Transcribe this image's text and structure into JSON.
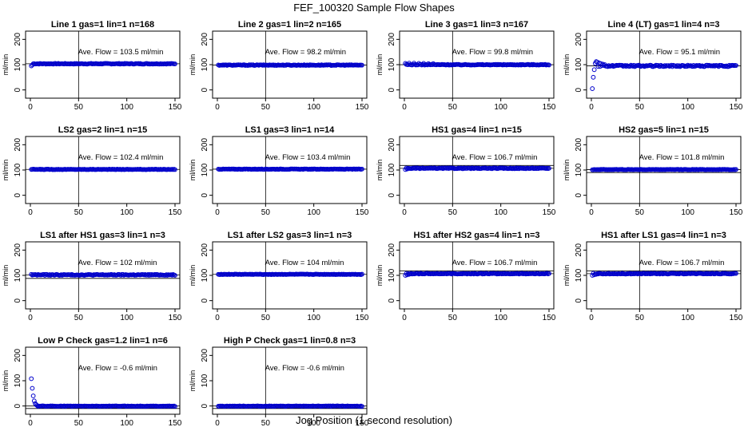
{
  "figure": {
    "title": "FEF_100320  Sample Flow Shapes",
    "xlabel": "Jog Position (1 second resolution)"
  },
  "colors": {
    "points": "#0000cc",
    "axis": "#000000"
  },
  "chart_data": [
    {
      "type": "scatter",
      "title": "Line 1 gas=1 lin=1 n=168",
      "ylabel": "ml/min",
      "annotation": "Ave. Flow =  103.5  ml/min",
      "xlim": [
        0,
        150
      ],
      "ylim": [
        -20,
        220
      ],
      "xticks": [
        0,
        50,
        100,
        150
      ],
      "yticks": [
        0,
        100,
        200
      ],
      "ref_lines_y": [
        103.5
      ],
      "ref_line_x": 50,
      "profile": {
        "base": 103.5,
        "noise": 1.5,
        "start": [
          [
            1,
            95
          ],
          [
            2,
            99
          ]
        ]
      }
    },
    {
      "type": "scatter",
      "title": "Line 2 gas=1 lin=2 n=165",
      "ylabel": "ml/min",
      "annotation": "Ave. Flow =  98.2  ml/min",
      "xlim": [
        0,
        150
      ],
      "ylim": [
        -20,
        220
      ],
      "xticks": [
        0,
        50,
        100,
        150
      ],
      "yticks": [
        0,
        100,
        200
      ],
      "ref_lines_y": [
        98.2
      ],
      "ref_line_x": 50,
      "profile": {
        "base": 98.2,
        "noise": 1.5,
        "start": []
      }
    },
    {
      "type": "scatter",
      "title": "Line 3 gas=1 lin=3 n=167",
      "ylabel": "ml/min",
      "annotation": "Ave. Flow =  99.8  ml/min",
      "xlim": [
        0,
        150
      ],
      "ylim": [
        -20,
        220
      ],
      "xticks": [
        0,
        50,
        100,
        150
      ],
      "yticks": [
        0,
        100,
        200
      ],
      "ref_lines_y": [
        99.8
      ],
      "ref_line_x": 50,
      "profile": {
        "base": 99.8,
        "noise": 1.5,
        "start": [
          [
            1,
            105
          ],
          [
            5,
            106
          ],
          [
            10,
            106
          ],
          [
            15,
            105
          ],
          [
            20,
            105
          ],
          [
            25,
            104
          ],
          [
            30,
            104
          ]
        ]
      }
    },
    {
      "type": "scatter",
      "title": "Line 4 (LT) gas=1 lin=4 n=3",
      "ylabel": "ml/min",
      "annotation": "Ave. Flow =  95.1  ml/min",
      "xlim": [
        0,
        150
      ],
      "ylim": [
        -20,
        220
      ],
      "xticks": [
        0,
        50,
        100,
        150
      ],
      "yticks": [
        0,
        100,
        200
      ],
      "ref_lines_y": [
        95.1
      ],
      "ref_line_x": 50,
      "profile": {
        "base": 95.1,
        "noise": 3,
        "start": [
          [
            1,
            5
          ],
          [
            2,
            50
          ],
          [
            3,
            80
          ],
          [
            4,
            105
          ],
          [
            5,
            112
          ],
          [
            6,
            110
          ],
          [
            8,
            107
          ],
          [
            10,
            104
          ],
          [
            12,
            102
          ],
          [
            14,
            100
          ]
        ]
      }
    },
    {
      "type": "scatter",
      "title": "LS2 gas=2 lin=1 n=15",
      "ylabel": "ml/min",
      "annotation": "Ave. Flow =  102.4  ml/min",
      "xlim": [
        0,
        150
      ],
      "ylim": [
        -20,
        220
      ],
      "xticks": [
        0,
        50,
        100,
        150
      ],
      "yticks": [
        0,
        100,
        200
      ],
      "ref_lines_y": [
        102.4
      ],
      "ref_line_x": 50,
      "profile": {
        "base": 102.4,
        "noise": 1,
        "start": []
      }
    },
    {
      "type": "scatter",
      "title": "LS1 gas=3 lin=1 n=14",
      "ylabel": "ml/min",
      "annotation": "Ave. Flow =  103.4  ml/min",
      "xlim": [
        0,
        150
      ],
      "ylim": [
        -20,
        220
      ],
      "xticks": [
        0,
        50,
        100,
        150
      ],
      "yticks": [
        0,
        100,
        200
      ],
      "ref_lines_y": [
        103.4
      ],
      "ref_line_x": 50,
      "profile": {
        "base": 103.4,
        "noise": 1,
        "start": []
      }
    },
    {
      "type": "scatter",
      "title": "HS1 gas=4 lin=1 n=15",
      "ylabel": "ml/min",
      "annotation": "Ave. Flow =  106.7  ml/min",
      "xlim": [
        0,
        150
      ],
      "ylim": [
        -20,
        220
      ],
      "xticks": [
        0,
        50,
        100,
        150
      ],
      "yticks": [
        0,
        100,
        200
      ],
      "ref_lines_y": [
        106.7,
        118
      ],
      "ref_line_x": 50,
      "profile": {
        "base": 106.7,
        "noise": 1.5,
        "start": [
          [
            1,
            102
          ],
          [
            3,
            104
          ]
        ]
      }
    },
    {
      "type": "scatter",
      "title": "HS2 gas=5 lin=1 n=15",
      "ylabel": "ml/min",
      "annotation": "Ave. Flow =  101.8  ml/min",
      "xlim": [
        0,
        150
      ],
      "ylim": [
        -20,
        220
      ],
      "xticks": [
        0,
        50,
        100,
        150
      ],
      "yticks": [
        0,
        100,
        200
      ],
      "ref_lines_y": [
        101.8,
        90
      ],
      "ref_line_x": 50,
      "profile": {
        "base": 101.8,
        "noise": 1,
        "start": []
      }
    },
    {
      "type": "scatter",
      "title": "LS1 after HS1 gas=3 lin=1 n=3",
      "ylabel": "ml/min",
      "annotation": "Ave. Flow =  102  ml/min",
      "xlim": [
        0,
        150
      ],
      "ylim": [
        -20,
        220
      ],
      "xticks": [
        0,
        50,
        100,
        150
      ],
      "yticks": [
        0,
        100,
        200
      ],
      "ref_lines_y": [
        102,
        88
      ],
      "ref_line_x": 50,
      "profile": {
        "base": 102,
        "noise": 2,
        "start": [
          [
            1,
            104
          ],
          [
            3,
            103
          ]
        ]
      }
    },
    {
      "type": "scatter",
      "title": "LS1 after LS2 gas=3 lin=1 n=3",
      "ylabel": "ml/min",
      "annotation": "Ave. Flow =  104  ml/min",
      "xlim": [
        0,
        150
      ],
      "ylim": [
        -20,
        220
      ],
      "xticks": [
        0,
        50,
        100,
        150
      ],
      "yticks": [
        0,
        100,
        200
      ],
      "ref_lines_y": [
        104
      ],
      "ref_line_x": 50,
      "profile": {
        "base": 104,
        "noise": 1,
        "start": []
      }
    },
    {
      "type": "scatter",
      "title": "HS1 after HS2 gas=4 lin=1 n=3",
      "ylabel": "ml/min",
      "annotation": "Ave. Flow =  106.7  ml/min",
      "xlim": [
        0,
        150
      ],
      "ylim": [
        -20,
        220
      ],
      "xticks": [
        0,
        50,
        100,
        150
      ],
      "yticks": [
        0,
        100,
        200
      ],
      "ref_lines_y": [
        106.7,
        118
      ],
      "ref_line_x": 50,
      "profile": {
        "base": 106.7,
        "noise": 1.5,
        "start": [
          [
            1,
            100
          ],
          [
            3,
            102
          ],
          [
            5,
            104
          ]
        ]
      }
    },
    {
      "type": "scatter",
      "title": "HS1 after LS1 gas=4 lin=1 n=3",
      "ylabel": "ml/min",
      "annotation": "Ave. Flow =  106.7  ml/min",
      "xlim": [
        0,
        150
      ],
      "ylim": [
        -20,
        220
      ],
      "xticks": [
        0,
        50,
        100,
        150
      ],
      "yticks": [
        0,
        100,
        200
      ],
      "ref_lines_y": [
        106.7,
        118
      ],
      "ref_line_x": 50,
      "profile": {
        "base": 106.7,
        "noise": 1.5,
        "start": [
          [
            1,
            100
          ],
          [
            3,
            102
          ],
          [
            5,
            104
          ]
        ]
      }
    },
    {
      "type": "scatter",
      "title": "Low P Check gas=1.2 lin=1 n=6",
      "ylabel": "ml/min",
      "annotation": "Ave. Flow =  -0.6  ml/min",
      "xlim": [
        0,
        150
      ],
      "ylim": [
        -20,
        220
      ],
      "xticks": [
        0,
        50,
        100,
        150
      ],
      "yticks": [
        0,
        100,
        200
      ],
      "ref_lines_y": [
        0,
        -10
      ],
      "ref_line_x": 50,
      "profile": {
        "base": -0.6,
        "noise": 1,
        "start": [
          [
            1,
            108
          ],
          [
            2,
            70
          ],
          [
            3,
            40
          ],
          [
            4,
            20
          ],
          [
            5,
            10
          ],
          [
            6,
            5
          ],
          [
            7,
            2
          ]
        ]
      }
    },
    {
      "type": "scatter",
      "title": "High P Check gas=1 lin=0.8 n=3",
      "ylabel": "ml/min",
      "annotation": "Ave. Flow =  -0.6  ml/min",
      "xlim": [
        0,
        150
      ],
      "ylim": [
        -20,
        220
      ],
      "xticks": [
        0,
        50,
        100,
        150
      ],
      "yticks": [
        0,
        100,
        200
      ],
      "ref_lines_y": [
        0,
        -10
      ],
      "ref_line_x": 50,
      "profile": {
        "base": -0.6,
        "noise": 1,
        "start": []
      }
    }
  ]
}
